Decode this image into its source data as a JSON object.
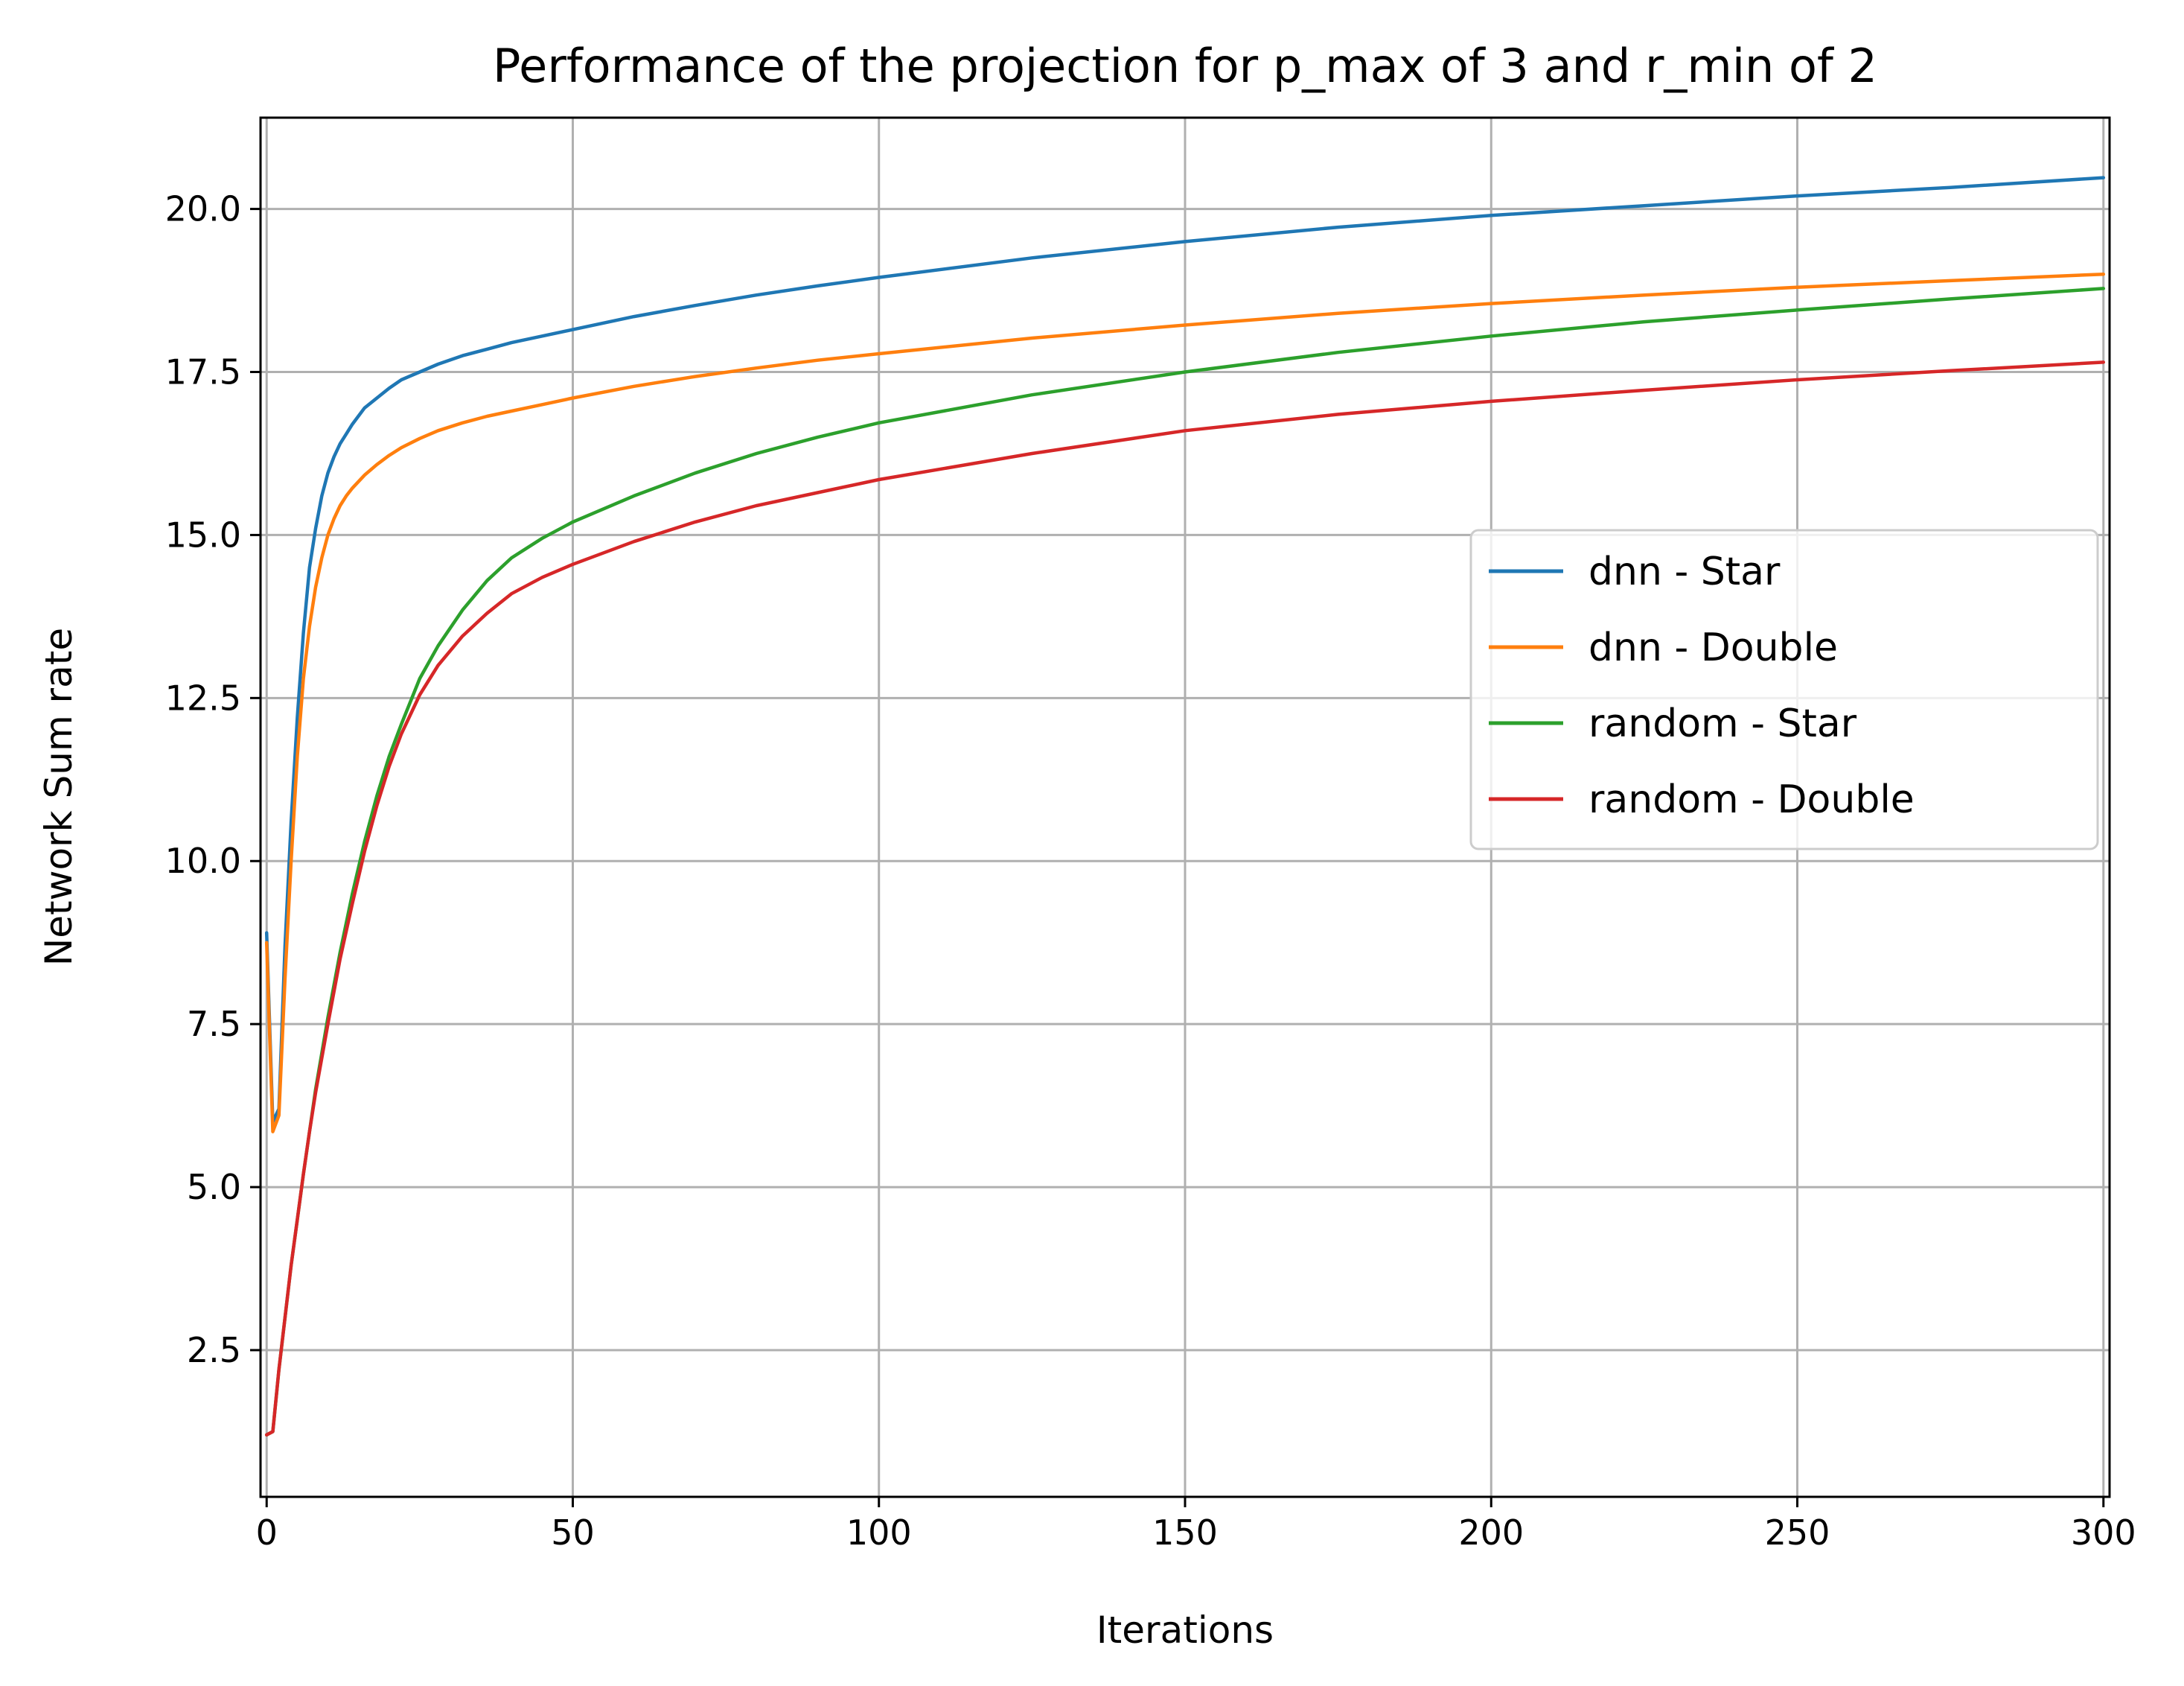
{
  "chart_data": {
    "type": "line",
    "title": "Performance of the projection for p_max of 3 and r_min of 2",
    "xlabel": "Iterations",
    "ylabel": "Network Sum rate",
    "xlim": [
      -1,
      301
    ],
    "ylim": [
      0.25,
      21.4
    ],
    "xticks": [
      0,
      50,
      100,
      150,
      200,
      250,
      300
    ],
    "xtick_labels": [
      "0",
      "50",
      "100",
      "150",
      "200",
      "250",
      "300"
    ],
    "yticks": [
      2.5,
      5.0,
      7.5,
      10.0,
      12.5,
      15.0,
      17.5,
      20.0
    ],
    "ytick_labels": [
      "2.5",
      "5.0",
      "7.5",
      "10.0",
      "12.5",
      "15.0",
      "17.5",
      "20.0"
    ],
    "grid": true,
    "legend": "center-right",
    "series": [
      {
        "name": "dnn - Star",
        "color": "#1f77b4",
        "x": [
          0,
          1,
          2,
          3,
          4,
          5,
          6,
          7,
          8,
          9,
          10,
          11,
          12,
          13,
          14,
          16,
          18,
          20,
          22,
          25,
          28,
          32,
          36,
          40,
          45,
          50,
          60,
          70,
          80,
          90,
          100,
          125,
          150,
          175,
          200,
          225,
          250,
          275,
          300
        ],
        "y": [
          8.9,
          6.0,
          6.2,
          8.7,
          10.6,
          12.2,
          13.5,
          14.5,
          15.1,
          15.6,
          15.95,
          16.2,
          16.4,
          16.55,
          16.7,
          16.95,
          17.1,
          17.25,
          17.38,
          17.5,
          17.62,
          17.75,
          17.85,
          17.95,
          18.05,
          18.15,
          18.35,
          18.52,
          18.68,
          18.82,
          18.95,
          19.25,
          19.5,
          19.72,
          19.9,
          20.05,
          20.2,
          20.33,
          20.48
        ]
      },
      {
        "name": "dnn - Double",
        "color": "#ff7f0e",
        "x": [
          0,
          1,
          2,
          3,
          4,
          5,
          6,
          7,
          8,
          9,
          10,
          11,
          12,
          13,
          14,
          16,
          18,
          20,
          22,
          25,
          28,
          32,
          36,
          40,
          45,
          50,
          60,
          70,
          80,
          90,
          100,
          125,
          150,
          175,
          200,
          225,
          250,
          275,
          300
        ],
        "y": [
          8.75,
          5.85,
          6.1,
          8.2,
          10.0,
          11.6,
          12.8,
          13.6,
          14.2,
          14.65,
          15.0,
          15.25,
          15.45,
          15.6,
          15.72,
          15.92,
          16.08,
          16.22,
          16.34,
          16.48,
          16.6,
          16.72,
          16.82,
          16.9,
          17.0,
          17.1,
          17.28,
          17.43,
          17.56,
          17.68,
          17.78,
          18.02,
          18.22,
          18.4,
          18.55,
          18.68,
          18.8,
          18.9,
          19.0
        ]
      },
      {
        "name": "random - Star",
        "color": "#2ca02c",
        "x": [
          0,
          1,
          2,
          3,
          4,
          5,
          6,
          7,
          8,
          10,
          12,
          14,
          16,
          18,
          20,
          22,
          25,
          28,
          32,
          36,
          40,
          45,
          50,
          60,
          70,
          80,
          90,
          100,
          125,
          150,
          175,
          200,
          225,
          250,
          275,
          300
        ],
        "y": [
          1.2,
          1.25,
          2.2,
          3.0,
          3.8,
          4.5,
          5.2,
          5.85,
          6.5,
          7.6,
          8.6,
          9.5,
          10.3,
          11.0,
          11.6,
          12.1,
          12.8,
          13.3,
          13.85,
          14.3,
          14.65,
          14.95,
          15.2,
          15.6,
          15.95,
          16.25,
          16.5,
          16.72,
          17.15,
          17.5,
          17.8,
          18.05,
          18.27,
          18.45,
          18.62,
          18.78
        ]
      },
      {
        "name": "random - Double",
        "color": "#d62728",
        "x": [
          0,
          1,
          2,
          3,
          4,
          5,
          6,
          7,
          8,
          10,
          12,
          14,
          16,
          18,
          20,
          22,
          25,
          28,
          32,
          36,
          40,
          45,
          50,
          60,
          70,
          80,
          90,
          100,
          125,
          150,
          175,
          200,
          225,
          250,
          275,
          300
        ],
        "y": [
          1.2,
          1.25,
          2.2,
          3.0,
          3.8,
          4.5,
          5.2,
          5.85,
          6.45,
          7.5,
          8.5,
          9.35,
          10.15,
          10.85,
          11.45,
          11.95,
          12.55,
          13.0,
          13.45,
          13.8,
          14.1,
          14.35,
          14.55,
          14.9,
          15.2,
          15.45,
          15.65,
          15.85,
          16.25,
          16.6,
          16.85,
          17.05,
          17.22,
          17.38,
          17.52,
          17.65
        ]
      }
    ]
  }
}
